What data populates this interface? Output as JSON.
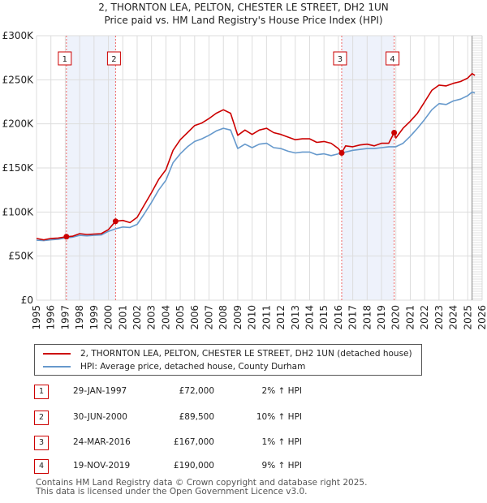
{
  "title": {
    "line1": "2, THORNTON LEA, PELTON, CHESTER LE STREET, DH2 1UN",
    "line2": "Price paid vs. HM Land Registry's House Price Index (HPI)"
  },
  "chart_data": {
    "type": "line",
    "title": "2, THORNTON LEA, PELTON, CHESTER LE STREET, DH2 1UN",
    "subtitle": "Price paid vs. HM Land Registry's House Price Index (HPI)",
    "xlabel": "",
    "ylabel": "",
    "xlim": [
      1995,
      2026
    ],
    "ylim": [
      0,
      300000
    ],
    "x_ticks": [
      1995,
      1996,
      1997,
      1998,
      1999,
      2000,
      2001,
      2002,
      2003,
      2004,
      2005,
      2006,
      2007,
      2008,
      2009,
      2010,
      2011,
      2012,
      2013,
      2014,
      2015,
      2016,
      2017,
      2018,
      2019,
      2020,
      2021,
      2022,
      2023,
      2024,
      2025,
      2026
    ],
    "y_ticks": [
      0,
      50000,
      100000,
      150000,
      200000,
      250000,
      300000
    ],
    "y_tick_labels": [
      "£0",
      "£50K",
      "£100K",
      "£150K",
      "£200K",
      "£250K",
      "£300K"
    ],
    "grid": true,
    "forecast_start": 2025.3,
    "series": [
      {
        "name": "2, THORNTON LEA, PELTON, CHESTER LE STREET, DH2 1UN (detached house)",
        "color": "#cc0000",
        "x": [
          1995.0,
          1995.5,
          1996.0,
          1996.5,
          1997.08,
          1997.5,
          1998.0,
          1998.5,
          1999.0,
          1999.5,
          2000.0,
          2000.5,
          2001.0,
          2001.5,
          2002.0,
          2002.5,
          2003.0,
          2003.5,
          2004.0,
          2004.5,
          2005.0,
          2005.5,
          2006.0,
          2006.5,
          2007.0,
          2007.5,
          2008.0,
          2008.5,
          2009.0,
          2009.5,
          2010.0,
          2010.5,
          2011.0,
          2011.5,
          2012.0,
          2012.5,
          2013.0,
          2013.5,
          2014.0,
          2014.5,
          2015.0,
          2015.5,
          2016.0,
          2016.23,
          2016.5,
          2017.0,
          2017.5,
          2018.0,
          2018.5,
          2019.0,
          2019.5,
          2019.88,
          2020.0,
          2020.5,
          2021.0,
          2021.5,
          2022.0,
          2022.5,
          2023.0,
          2023.5,
          2024.0,
          2024.5,
          2025.0,
          2025.3,
          2025.5
        ],
        "values": [
          70000,
          68500,
          70000,
          70500,
          72000,
          72500,
          75500,
          74500,
          75000,
          75500,
          80000,
          89500,
          90500,
          88000,
          94000,
          108000,
          122000,
          137000,
          148000,
          170000,
          182000,
          190000,
          198000,
          201000,
          206000,
          212000,
          216000,
          212000,
          187000,
          193000,
          188000,
          193000,
          195000,
          190000,
          188000,
          185000,
          182000,
          183000,
          183000,
          179000,
          180000,
          178000,
          172000,
          167000,
          175000,
          174000,
          176000,
          177000,
          175000,
          178000,
          178000,
          190000,
          184000,
          195000,
          203000,
          212000,
          225000,
          238000,
          244000,
          243000,
          246000,
          248000,
          252000,
          257000,
          255000
        ]
      },
      {
        "name": "HPI: Average price, detached house, County Durham",
        "color": "#6699cc",
        "x": [
          1995.0,
          1995.5,
          1996.0,
          1996.5,
          1997.0,
          1997.5,
          1998.0,
          1998.5,
          1999.0,
          1999.5,
          2000.0,
          2000.5,
          2001.0,
          2001.5,
          2002.0,
          2002.5,
          2003.0,
          2003.5,
          2004.0,
          2004.5,
          2005.0,
          2005.5,
          2006.0,
          2006.5,
          2007.0,
          2007.5,
          2008.0,
          2008.5,
          2009.0,
          2009.5,
          2010.0,
          2010.5,
          2011.0,
          2011.5,
          2012.0,
          2012.5,
          2013.0,
          2013.5,
          2014.0,
          2014.5,
          2015.0,
          2015.5,
          2016.0,
          2016.5,
          2017.0,
          2017.5,
          2018.0,
          2018.5,
          2019.0,
          2019.5,
          2020.0,
          2020.5,
          2021.0,
          2021.5,
          2022.0,
          2022.5,
          2023.0,
          2023.5,
          2024.0,
          2024.5,
          2025.0,
          2025.3,
          2025.5
        ],
        "values": [
          68000,
          67500,
          68500,
          69000,
          70500,
          71500,
          73500,
          73000,
          73500,
          74000,
          78000,
          81000,
          83000,
          82500,
          86000,
          98000,
          111000,
          125000,
          136000,
          156000,
          166000,
          174000,
          180000,
          183000,
          187000,
          192000,
          195000,
          193000,
          172000,
          177000,
          173000,
          177000,
          178000,
          173000,
          172000,
          169000,
          167000,
          168000,
          168000,
          165000,
          166000,
          164000,
          166000,
          168000,
          170000,
          171000,
          172000,
          172000,
          173000,
          174000,
          174000,
          178000,
          186000,
          195000,
          205000,
          216000,
          223000,
          222000,
          226000,
          228000,
          232000,
          236000,
          235000
        ]
      }
    ],
    "annotations": [
      {
        "label": "1",
        "x": 1997.08,
        "value": 72000
      },
      {
        "label": "2",
        "x": 2000.5,
        "value": 89500
      },
      {
        "label": "3",
        "x": 2016.23,
        "value": 167000
      },
      {
        "label": "4",
        "x": 2019.88,
        "value": 190000
      }
    ],
    "shaded_ranges": [
      [
        1997.08,
        2000.5
      ],
      [
        2016.23,
        2019.88
      ]
    ]
  },
  "legend": {
    "property": "2, THORNTON LEA, PELTON, CHESTER LE STREET, DH2 1UN (detached house)",
    "hpi": "HPI: Average price, detached house, County Durham"
  },
  "sales": [
    {
      "num": "1",
      "date": "29-JAN-1997",
      "price": "£72,000",
      "hpi": "2% ↑ HPI"
    },
    {
      "num": "2",
      "date": "30-JUN-2000",
      "price": "£89,500",
      "hpi": "10% ↑ HPI"
    },
    {
      "num": "3",
      "date": "24-MAR-2016",
      "price": "£167,000",
      "hpi": "1% ↑ HPI"
    },
    {
      "num": "4",
      "date": "19-NOV-2019",
      "price": "£190,000",
      "hpi": "9% ↑ HPI"
    }
  ],
  "footer": {
    "line1": "Contains HM Land Registry data © Crown copyright and database right 2025.",
    "line2": "This data is licensed under the Open Government Licence v3.0."
  },
  "colors": {
    "property": "#cc0000",
    "hpi": "#6699cc",
    "shade": "#eef2fb",
    "grid": "#dddddd"
  }
}
